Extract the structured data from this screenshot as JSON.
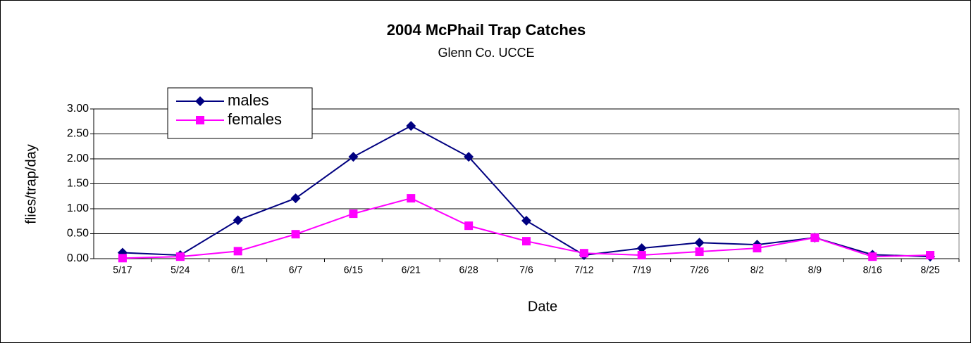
{
  "chart_data": {
    "type": "line",
    "title": "2004 McPhail Trap Catches",
    "subtitle": "Glenn Co. UCCE",
    "x_label": "Date",
    "y_label": "flies/trap/day",
    "categories": [
      "5/17",
      "5/24",
      "6/1",
      "6/7",
      "6/15",
      "6/21",
      "6/28",
      "7/6",
      "7/12",
      "7/19",
      "7/26",
      "8/2",
      "8/9",
      "8/16",
      "8/25"
    ],
    "series": [
      {
        "name": "males",
        "color": "#000080",
        "marker": "diamond",
        "values": [
          0.12,
          0.07,
          0.77,
          1.21,
          2.04,
          2.66,
          2.04,
          0.76,
          0.07,
          0.21,
          0.32,
          0.28,
          0.42,
          0.08,
          0.04
        ]
      },
      {
        "name": "females",
        "color": "#ff00ff",
        "marker": "square",
        "values": [
          0.01,
          0.04,
          0.15,
          0.49,
          0.9,
          1.21,
          0.66,
          0.35,
          0.11,
          0.07,
          0.14,
          0.21,
          0.42,
          0.04,
          0.07
        ]
      }
    ],
    "ylim": [
      0,
      3
    ],
    "yticks": [
      {
        "value": 0,
        "label": "0.00"
      },
      {
        "value": 0.5,
        "label": "0.50"
      },
      {
        "value": 1,
        "label": "1.00"
      },
      {
        "value": 1.5,
        "label": "1.50"
      },
      {
        "value": 2,
        "label": "2.00"
      },
      {
        "value": 2.5,
        "label": "2.50"
      },
      {
        "value": 3,
        "label": "3.00"
      }
    ],
    "grid": true
  }
}
